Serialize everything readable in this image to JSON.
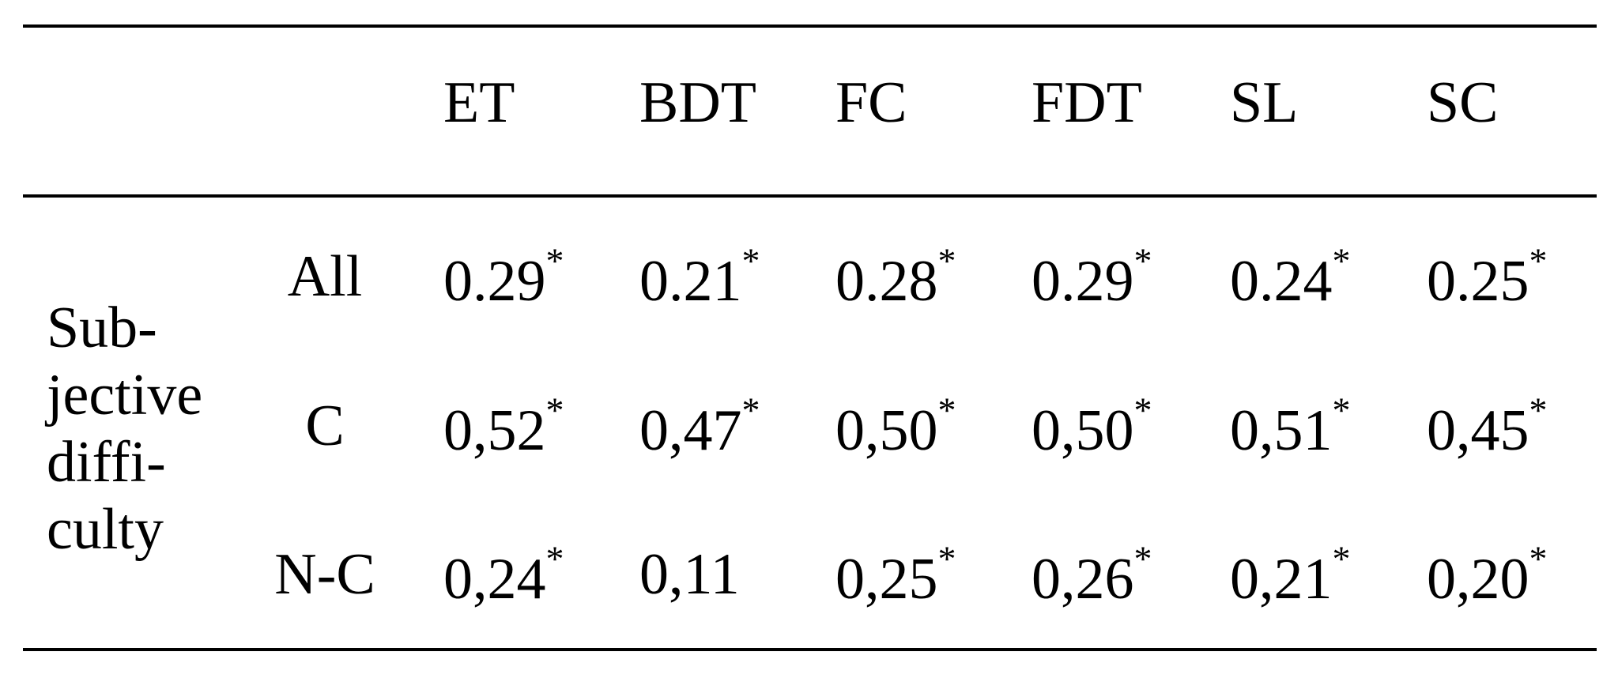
{
  "table": {
    "columns": [
      "ET",
      "BDT",
      "FC",
      "FDT",
      "SL",
      "SC"
    ],
    "group_label": [
      "Sub-",
      "jective",
      "diffi-",
      "culty"
    ],
    "rows": [
      {
        "label": "All",
        "cells": [
          {
            "value": "0.29",
            "mark": "*"
          },
          {
            "value": "0.21",
            "mark": "*"
          },
          {
            "value": "0.28",
            "mark": "*"
          },
          {
            "value": "0.29",
            "mark": "*"
          },
          {
            "value": "0.24",
            "mark": "*"
          },
          {
            "value": "0.25",
            "mark": "*"
          }
        ]
      },
      {
        "label": "C",
        "cells": [
          {
            "value": "0,52",
            "mark": "*"
          },
          {
            "value": "0,47",
            "mark": "*"
          },
          {
            "value": "0,50",
            "mark": "*"
          },
          {
            "value": "0,50",
            "mark": "*"
          },
          {
            "value": "0,51",
            "mark": "*"
          },
          {
            "value": "0,45",
            "mark": "*"
          }
        ]
      },
      {
        "label": "N-C",
        "cells": [
          {
            "value": "0,24",
            "mark": "*"
          },
          {
            "value": "0,11"
          },
          {
            "value": "0,25",
            "mark": "*"
          },
          {
            "value": "0,26",
            "mark": "*"
          },
          {
            "value": "0,21",
            "mark": "*"
          },
          {
            "value": "0,20",
            "mark": "*"
          }
        ]
      }
    ]
  }
}
